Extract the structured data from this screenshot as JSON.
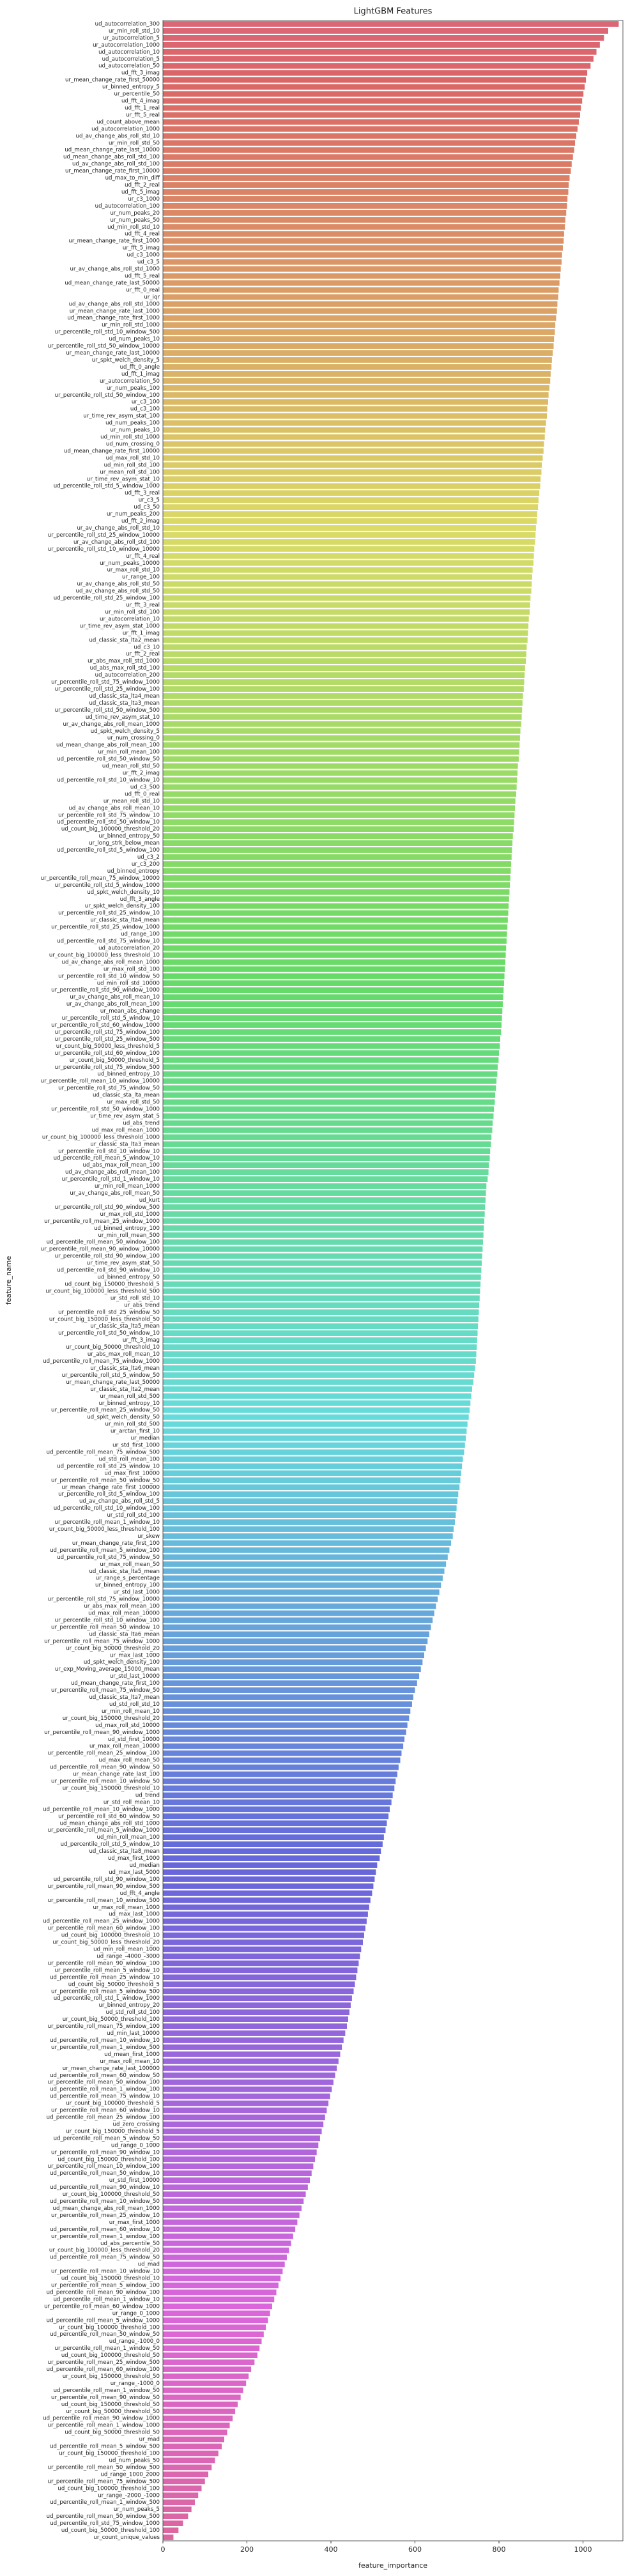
{
  "chart_data": {
    "type": "barh",
    "title": "LightGBM Features",
    "xlabel": "feature_importance",
    "ylabel": "feature_name",
    "xlim": [
      0,
      1095
    ],
    "xticks": [
      0,
      200,
      400,
      600,
      800,
      1000
    ],
    "palette": "husl",
    "grid": false,
    "categories": [
      "ud_autocorrelation_300",
      "ur_min_roll_std_10",
      "ur_autocorrelation_5",
      "ur_autocorrelation_1000",
      "ud_autocorrelation_10",
      "ud_autocorrelation_5",
      "ud_autocorrelation_50",
      "ud_fft_3_imag",
      "ur_mean_change_rate_first_50000",
      "ur_binned_entropy_5",
      "ur_percentile_50",
      "ud_fft_4_imag",
      "ud_fft_1_real",
      "ur_fft_5_real",
      "ud_count_above_mean",
      "ud_autocorrelation_1000",
      "ud_av_change_abs_roll_std_10",
      "ur_min_roll_std_50",
      "ud_mean_change_rate_last_10000",
      "ud_mean_change_abs_roll_std_100",
      "ud_av_change_abs_roll_std_100",
      "ur_mean_change_rate_first_10000",
      "ud_max_to_min_diff",
      "ud_fft_2_real",
      "ud_fft_5_imag",
      "ur_c3_1000",
      "ud_autocorrelation_100",
      "ur_num_peaks_20",
      "ur_num_peaks_50",
      "ud_min_roll_std_10",
      "ud_fft_4_real",
      "ur_mean_change_rate_first_1000",
      "ur_fft_5_imag",
      "ud_c3_1000",
      "ud_c3_5",
      "ur_av_change_abs_roll_std_1000",
      "ud_fft_5_real",
      "ud_mean_change_rate_last_50000",
      "ur_fft_0_real",
      "ur_iqr",
      "ud_av_change_abs_roll_std_1000",
      "ur_mean_change_rate_last_1000",
      "ud_mean_change_rate_first_1000",
      "ur_min_roll_std_1000",
      "ur_percentile_roll_std_10_window_500",
      "ud_num_peaks_10",
      "ur_percentile_roll_std_50_window_10000",
      "ur_mean_change_rate_last_10000",
      "ur_spkt_welch_density_5",
      "ud_fft_0_angle",
      "ud_fft_1_imag",
      "ur_autocorrelation_50",
      "ur_num_peaks_100",
      "ur_percentile_roll_std_50_window_100",
      "ur_c3_100",
      "ud_c3_100",
      "ur_time_rev_asym_stat_100",
      "ud_num_peaks_100",
      "ur_num_peaks_10",
      "ud_min_roll_std_1000",
      "ud_num_crossing_0",
      "ud_mean_change_rate_first_10000",
      "ud_max_roll_std_10",
      "ud_min_roll_std_100",
      "ur_mean_roll_std_100",
      "ur_time_rev_asym_stat_10",
      "ud_percentile_roll_std_5_window_1000",
      "ud_fft_3_real",
      "ur_c3_5",
      "ud_c3_50",
      "ur_num_peaks_200",
      "ud_fft_2_imag",
      "ur_av_change_abs_roll_std_10",
      "ur_percentile_roll_std_25_window_10000",
      "ur_av_change_abs_roll_std_100",
      "ur_percentile_roll_std_10_window_10000",
      "ur_fft_4_real",
      "ur_num_peaks_10000",
      "ur_max_roll_std_10",
      "ur_range_100",
      "ur_av_change_abs_roll_std_50",
      "ud_av_change_abs_roll_std_50",
      "ud_percentile_roll_std_25_window_100",
      "ur_fft_3_real",
      "ur_min_roll_std_100",
      "ur_autocorrelation_10",
      "ur_time_rev_asym_stat_1000",
      "ur_fft_1_imag",
      "ud_classic_sta_lta2_mean",
      "ud_c3_10",
      "ur_fft_2_real",
      "ur_abs_max_roll_std_1000",
      "ud_abs_max_roll_std_100",
      "ud_autocorrelation_200",
      "ur_percentile_roll_std_75_window_1000",
      "ur_percentile_roll_std_25_window_100",
      "ud_classic_sta_lta4_mean",
      "ud_classic_sta_lta3_mean",
      "ur_percentile_roll_std_50_window_500",
      "ud_time_rev_asym_stat_10",
      "ur_av_change_abs_roll_mean_1000",
      "ud_spkt_welch_density_5",
      "ur_num_crossing_0",
      "ud_mean_change_abs_roll_mean_100",
      "ur_min_roll_mean_100",
      "ud_percentile_roll_std_50_window_50",
      "ud_mean_roll_std_50",
      "ur_fft_2_imag",
      "ud_percentile_roll_std_10_window_10",
      "ud_c3_500",
      "ud_fft_0_real",
      "ur_mean_roll_std_10",
      "ud_av_change_abs_roll_mean_10",
      "ur_percentile_roll_std_75_window_10",
      "ud_percentile_roll_std_50_window_10",
      "ud_count_big_100000_threshold_20",
      "ur_binned_entropy_50",
      "ur_long_strk_below_mean",
      "ud_percentile_roll_std_5_window_100",
      "ud_c3_2",
      "ur_c3_200",
      "ud_binned_entropy",
      "ur_percentile_roll_mean_75_window_10000",
      "ur_percentile_roll_std_5_window_1000",
      "ud_spkt_welch_density_10",
      "ud_fft_3_angle",
      "ur_spkt_welch_density_100",
      "ur_percentile_roll_std_25_window_10",
      "ur_classic_sta_lta4_mean",
      "ur_percentile_roll_std_25_window_1000",
      "ud_range_100",
      "ud_percentile_roll_std_75_window_10",
      "ud_autocorrelation_20",
      "ur_count_big_100000_less_threshold_10",
      "ud_av_change_abs_roll_mean_1000",
      "ur_max_roll_std_100",
      "ur_percentile_roll_std_10_window_50",
      "ud_min_roll_std_10000",
      "ur_percentile_roll_std_90_window_1000",
      "ur_av_change_abs_roll_mean_10",
      "ur_av_change_abs_roll_mean_100",
      "ur_mean_abs_change",
      "ur_percentile_roll_std_5_window_10",
      "ur_percentile_roll_std_60_window_1000",
      "ur_percentile_roll_std_75_window_100",
      "ur_percentile_roll_std_25_window_500",
      "ur_count_big_50000_less_threshold_5",
      "ur_percentile_roll_std_60_window_100",
      "ur_count_big_50000_threshold_5",
      "ur_percentile_roll_std_75_window_500",
      "ud_binned_entropy_10",
      "ur_percentile_roll_mean_10_window_10000",
      "ur_percentile_roll_std_75_window_50",
      "ud_classic_sta_lta_mean",
      "ur_max_roll_std_50",
      "ur_percentile_roll_std_50_window_1000",
      "ur_time_rev_asym_stat_5",
      "ud_abs_trend",
      "ud_max_roll_mean_1000",
      "ur_count_big_100000_less_threshold_1000",
      "ur_classic_sta_lta3_mean",
      "ur_percentile_roll_std_10_window_10",
      "ud_percentile_roll_mean_5_window_10",
      "ud_abs_max_roll_mean_100",
      "ud_av_change_abs_roll_mean_100",
      "ur_percentile_roll_std_1_window_10",
      "ur_min_roll_mean_1000",
      "ur_av_change_abs_roll_mean_50",
      "ud_kurt",
      "ur_percentile_roll_std_90_window_500",
      "ur_max_roll_std_1000",
      "ur_percentile_roll_mean_25_window_1000",
      "ud_binned_entropy_100",
      "ur_min_roll_mean_500",
      "ud_percentile_roll_mean_50_window_100",
      "ur_percentile_roll_mean_90_window_10000",
      "ur_percentile_roll_std_90_window_100",
      "ur_time_rev_asym_stat_50",
      "ud_percentile_roll_std_90_window_10",
      "ud_binned_entropy_50",
      "ud_count_big_150000_threshold_5",
      "ur_count_big_100000_less_threshold_500",
      "ur_std_roll_std_10",
      "ur_abs_trend",
      "ur_percentile_roll_std_25_window_50",
      "ur_count_big_150000_less_threshold_50",
      "ur_classic_sta_lta5_mean",
      "ur_percentile_roll_std_50_window_10",
      "ur_fft_3_imag",
      "ur_count_big_50000_threshold_10",
      "ur_abs_max_roll_mean_10",
      "ud_percentile_roll_mean_75_window_1000",
      "ur_classic_sta_lta6_mean",
      "ur_percentile_roll_std_5_window_50",
      "ur_mean_change_rate_last_50000",
      "ur_classic_sta_lta2_mean",
      "ur_mean_roll_std_500",
      "ur_binned_entropy_10",
      "ur_percentile_roll_mean_25_window_50",
      "ud_spkt_welch_density_50",
      "ur_min_roll_std_500",
      "ur_arctan_first_10",
      "ur_median",
      "ur_std_first_1000",
      "ud_percentile_roll_mean_75_window_500",
      "ud_std_roll_mean_100",
      "ud_percentile_roll_std_25_window_10",
      "ud_max_first_10000",
      "ur_percentile_roll_mean_50_window_50",
      "ur_mean_change_rate_first_100000",
      "ur_percentile_roll_std_5_window_100",
      "ud_av_change_abs_roll_std_5",
      "ud_percentile_roll_std_10_window_100",
      "ur_std_roll_std_100",
      "ur_percentile_roll_mean_1_window_10",
      "ur_count_big_50000_less_threshold_100",
      "ur_skew",
      "ur_mean_change_rate_first_100",
      "ud_percentile_roll_mean_5_window_100",
      "ud_percentile_roll_std_75_window_50",
      "ur_max_roll_mean_50",
      "ud_classic_sta_lta5_mean",
      "ur_range_s_percentage",
      "ur_binned_entropy_100",
      "ur_std_last_1000",
      "ur_percentile_roll_std_75_window_10000",
      "ur_abs_max_roll_mean_100",
      "ud_max_roll_mean_10000",
      "ur_percentile_roll_std_10_window_100",
      "ur_percentile_roll_mean_50_window_10",
      "ud_classic_sta_lta6_mean",
      "ur_percentile_roll_mean_75_window_1000",
      "ur_count_big_50000_threshold_20",
      "ur_max_last_1000",
      "ud_spkt_welch_density_100",
      "ur_exp_Moving_average_15000_mean",
      "ur_std_last_10000",
      "ud_mean_change_rate_first_100",
      "ur_percentile_roll_mean_75_window_50",
      "ud_classic_sta_lta7_mean",
      "ud_std_roll_std_10",
      "ur_min_roll_mean_10",
      "ur_count_big_150000_threshold_20",
      "ud_max_roll_std_10000",
      "ur_percentile_roll_mean_90_window_1000",
      "ud_std_first_10000",
      "ur_max_roll_mean_10000",
      "ur_percentile_roll_mean_25_window_100",
      "ud_max_roll_mean_50",
      "ud_percentile_roll_mean_90_window_50",
      "ur_mean_change_rate_last_100",
      "ur_percentile_roll_mean_10_window_50",
      "ur_count_big_150000_threshold_10",
      "ud_trend",
      "ur_std_roll_mean_10",
      "ud_percentile_roll_mean_10_window_1000",
      "ur_percentile_roll_std_60_window_50",
      "ud_mean_change_abs_roll_std_1000",
      "ur_percentile_roll_mean_5_window_1000",
      "ud_min_roll_mean_100",
      "ud_percentile_roll_std_5_window_10",
      "ud_classic_sta_lta8_mean",
      "ud_max_first_1000",
      "ud_median",
      "ud_max_last_5000",
      "ud_percentile_roll_std_90_window_100",
      "ur_percentile_roll_mean_90_window_500",
      "ud_fft_4_angle",
      "ur_percentile_roll_mean_10_window_500",
      "ur_max_roll_mean_1000",
      "ud_max_last_1000",
      "ud_percentile_roll_mean_25_window_1000",
      "ur_percentile_roll_mean_60_window_100",
      "ud_count_big_100000_threshold_10",
      "ur_count_big_50000_less_threshold_20",
      "ud_min_roll_mean_1000",
      "ud_range_-4000_-3000",
      "ur_percentile_roll_mean_90_window_100",
      "ur_percentile_roll_mean_5_window_10",
      "ud_percentile_roll_mean_25_window_10",
      "ud_count_big_50000_threshold_5",
      "ur_percentile_roll_mean_5_window_500",
      "ud_percentile_roll_std_1_window_1000",
      "ur_binned_entropy_20",
      "ud_std_roll_std_100",
      "ur_count_big_50000_threshold_100",
      "ur_percentile_roll_mean_75_window_100",
      "ud_min_last_10000",
      "ud_percentile_roll_mean_10_window_10",
      "ur_percentile_roll_mean_1_window_500",
      "ud_mean_first_1000",
      "ur_max_roll_mean_10",
      "ur_mean_change_rate_last_100000",
      "ud_percentile_roll_mean_60_window_50",
      "ur_percentile_roll_mean_50_window_100",
      "ud_percentile_roll_mean_1_window_100",
      "ud_percentile_roll_mean_75_window_10",
      "ur_count_big_100000_threshold_5",
      "ur_percentile_roll_mean_60_window_10",
      "ud_percentile_roll_mean_25_window_100",
      "ud_zero_crossing",
      "ur_count_big_150000_threshold_5",
      "ud_percentile_roll_mean_5_window_50",
      "ud_range_0_1000",
      "ur_percentile_roll_mean_90_window_10",
      "ud_count_big_150000_threshold_100",
      "ur_percentile_roll_mean_10_window_100",
      "ud_percentile_roll_mean_50_window_10",
      "ur_std_first_10000",
      "ud_percentile_roll_mean_90_window_10",
      "ur_count_big_100000_threshold_50",
      "ud_percentile_roll_mean_10_window_50",
      "ud_mean_change_abs_roll_mean_1000",
      "ur_percentile_roll_mean_25_window_10",
      "ur_max_first_1000",
      "ud_percentile_roll_mean_60_window_10",
      "ur_percentile_roll_mean_1_window_100",
      "ud_abs_percentile_50",
      "ur_count_big_100000_less_threshold_20",
      "ud_percentile_roll_mean_75_window_50",
      "ud_mad",
      "ur_percentile_roll_mean_10_window_10",
      "ud_count_big_150000_threshold_10",
      "ur_percentile_roll_mean_5_window_100",
      "ud_percentile_roll_mean_90_window_100",
      "ud_percentile_roll_mean_1_window_10",
      "ur_percentile_roll_mean_60_window_1000",
      "ur_range_0_1000",
      "ud_percentile_roll_mean_5_window_1000",
      "ur_count_big_100000_threshold_100",
      "ud_percentile_roll_mean_50_window_50",
      "ud_range_-1000_0",
      "ur_percentile_roll_mean_1_window_50",
      "ud_count_big_100000_threshold_50",
      "ur_percentile_roll_mean_25_window_500",
      "ud_percentile_roll_mean_60_window_100",
      "ur_count_big_150000_threshold_50",
      "ur_range_-1000_0",
      "ud_percentile_roll_mean_1_window_50",
      "ur_percentile_roll_mean_90_window_50",
      "ud_count_big_150000_threshold_50",
      "ur_count_big_50000_threshold_50",
      "ud_percentile_roll_mean_90_window_1000",
      "ur_percentile_roll_mean_1_window_1000",
      "ud_count_big_50000_threshold_50",
      "ur_mad",
      "ud_percentile_roll_mean_5_window_500",
      "ur_count_big_150000_threshold_100",
      "ud_num_peaks_50",
      "ur_percentile_roll_mean_50_window_500",
      "ud_range_1000_2000",
      "ur_percentile_roll_mean_75_window_500",
      "ud_count_big_100000_threshold_100",
      "ur_range_-2000_-1000",
      "ud_percentile_roll_mean_1_window_500",
      "ur_num_peaks_5",
      "ud_percentile_roll_mean_50_window_500",
      "ud_percentile_roll_std_75_window_1000",
      "ud_count_big_50000_threshold_100",
      "ur_count_unique_values"
    ],
    "values": [
      1085,
      1060,
      1050,
      1040,
      1032,
      1025,
      1018,
      1010,
      1007,
      1004,
      1001,
      998,
      995,
      993,
      990,
      987,
      984,
      981,
      979,
      976,
      973,
      971,
      968,
      966,
      965,
      963,
      962,
      960,
      958,
      957,
      955,
      954,
      952,
      950,
      949,
      947,
      946,
      944,
      942,
      941,
      939,
      938,
      936,
      934,
      933,
      931,
      930,
      928,
      926,
      925,
      923,
      922,
      920,
      918,
      917,
      915,
      914,
      912,
      910,
      909,
      907,
      906,
      904,
      902,
      901,
      899,
      898,
      896,
      894,
      893,
      891,
      890,
      888,
      887,
      886,
      884,
      883,
      882,
      880,
      879,
      878,
      877,
      875,
      874,
      873,
      871,
      870,
      869,
      868,
      866,
      865,
      864,
      862,
      861,
      860,
      859,
      857,
      856,
      855,
      854,
      853,
      851,
      850,
      849,
      848,
      847,
      845,
      844,
      843,
      842,
      841,
      839,
      838,
      837,
      836,
      835,
      833,
      832,
      831,
      830,
      829,
      828,
      827,
      826,
      825,
      824,
      823,
      822,
      821,
      820,
      819,
      818,
      817,
      816,
      815,
      814,
      813,
      812,
      811,
      810,
      809,
      808,
      807,
      806,
      805,
      803,
      802,
      800,
      799,
      797,
      796,
      794,
      793,
      791,
      790,
      788,
      787,
      785,
      784,
      782,
      781,
      779,
      778,
      776,
      775,
      773,
      770,
      769,
      768,
      767,
      766,
      765,
      764,
      763,
      762,
      761,
      760,
      759,
      758,
      757,
      756,
      755,
      754,
      753,
      752,
      751,
      750,
      749,
      748,
      747,
      746,
      745,
      743,
      741,
      739,
      736,
      734,
      732,
      730,
      728,
      725,
      723,
      721,
      719,
      717,
      714,
      712,
      710,
      708,
      706,
      703,
      701,
      699,
      697,
      695,
      692,
      690,
      686,
      682,
      678,
      674,
      670,
      666,
      662,
      658,
      654,
      650,
      646,
      642,
      638,
      634,
      630,
      626,
      622,
      618,
      614,
      610,
      605,
      600,
      596,
      593,
      589,
      586,
      582,
      579,
      575,
      572,
      568,
      565,
      561,
      558,
      554,
      551,
      547,
      544,
      540,
      537,
      533,
      530,
      526,
      523,
      519,
      516,
      510,
      507,
      504,
      501,
      498,
      494,
      491,
      488,
      485,
      482,
      479,
      476,
      472,
      469,
      466,
      463,
      460,
      457,
      454,
      450,
      447,
      444,
      441,
      438,
      434,
      430,
      426,
      422,
      418,
      414,
      410,
      406,
      402,
      398,
      394,
      390,
      386,
      382,
      378,
      374,
      370,
      366,
      362,
      358,
      354,
      350,
      345,
      340,
      335,
      330,
      325,
      320,
      315,
      310,
      305,
      300,
      295,
      290,
      285,
      280,
      275,
      270,
      265,
      260,
      255,
      250,
      245,
      240,
      235,
      230,
      225,
      218,
      210,
      204,
      198,
      191,
      185,
      178,
      172,
      166,
      159,
      153,
      146,
      140,
      132,
      124,
      116,
      108,
      100,
      92,
      84,
      76,
      68,
      60,
      48,
      37,
      25
    ]
  }
}
